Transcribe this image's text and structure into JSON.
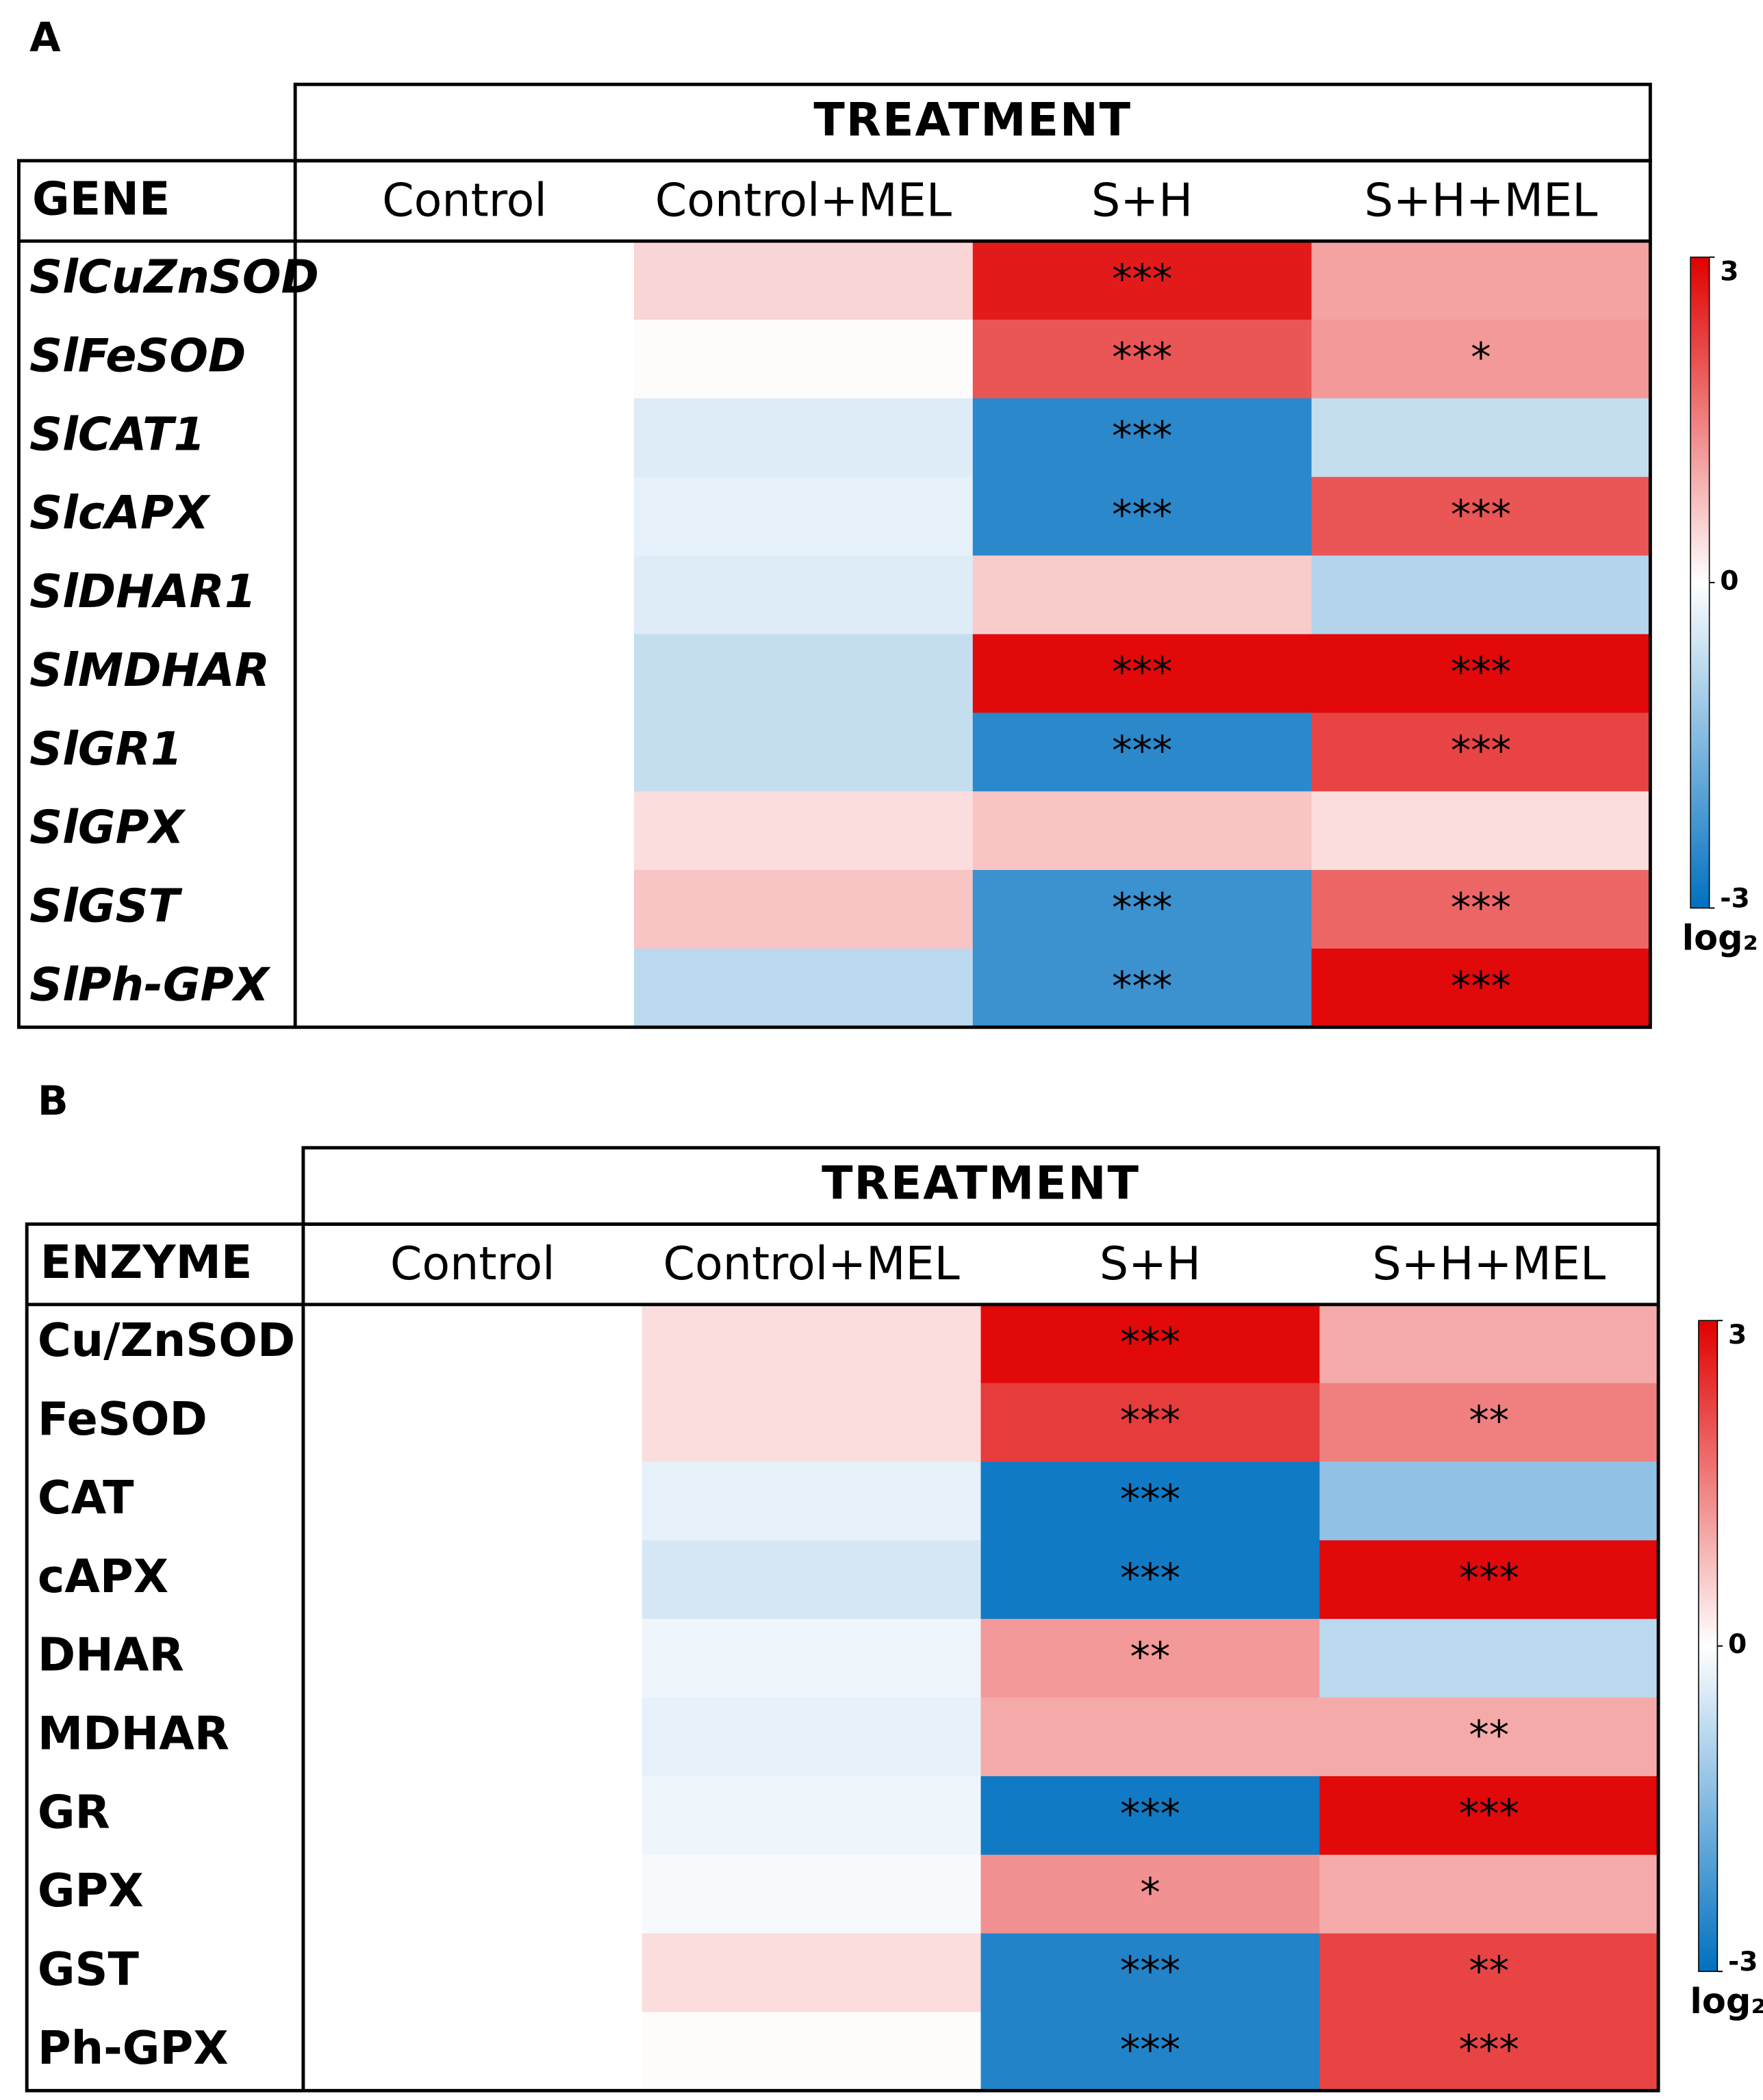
{
  "chart_data": [
    {
      "type": "heatmap",
      "panel_label": "A",
      "header": "TREATMENT",
      "corner_label": "GENE",
      "row_label_style": "italic",
      "columns": [
        "Control",
        "Control+MEL",
        "S+H",
        "S+H+MEL"
      ],
      "rows": [
        "SlCuZnSOD",
        "SlFeSOD",
        "SlCAT1",
        "SlcAPX",
        "SlDHAR1",
        "SlMDHAR",
        "SlGR1",
        "SlGPX",
        "SlGST",
        "SlPh-GPX"
      ],
      "values": [
        [
          0,
          0.5,
          2.7,
          1.1
        ],
        [
          0,
          0.05,
          2.0,
          1.2
        ],
        [
          0,
          -0.4,
          -2.5,
          -0.7
        ],
        [
          0,
          -0.3,
          -2.5,
          2.0
        ],
        [
          0,
          -0.4,
          0.6,
          -0.9
        ],
        [
          0,
          -0.7,
          2.9,
          2.9
        ],
        [
          0,
          -0.7,
          -2.5,
          2.2
        ],
        [
          0,
          0.4,
          0.7,
          0.4
        ],
        [
          0,
          0.7,
          -2.3,
          1.8
        ],
        [
          0,
          -0.8,
          -2.3,
          2.9
        ]
      ],
      "annotations": [
        [
          null,
          null,
          "***",
          null
        ],
        [
          null,
          null,
          "***",
          "*"
        ],
        [
          null,
          null,
          "***",
          null
        ],
        [
          null,
          null,
          "***",
          "***"
        ],
        [
          null,
          null,
          null,
          null
        ],
        [
          null,
          null,
          "***",
          "***"
        ],
        [
          null,
          null,
          "***",
          "***"
        ],
        [
          null,
          null,
          null,
          null
        ],
        [
          null,
          null,
          "***",
          "***"
        ],
        [
          null,
          null,
          "***",
          "***"
        ]
      ],
      "zlim": [
        -3,
        3
      ],
      "zticks": [
        -3,
        0,
        3
      ],
      "colorbar_label": "log₂",
      "colors": {
        "low": "#0070c0",
        "mid": "#ffffff",
        "high": "#e00000"
      }
    },
    {
      "type": "heatmap",
      "panel_label": "B",
      "header": "TREATMENT",
      "corner_label": "ENZYME",
      "row_label_style": "normal",
      "columns": [
        "Control",
        "Control+MEL",
        "S+H",
        "S+H+MEL"
      ],
      "rows": [
        "Cu/ZnSOD",
        "FeSOD",
        "CAT",
        "cAPX",
        "DHAR",
        "MDHAR",
        "GR",
        "GPX",
        "GST",
        "Ph-GPX"
      ],
      "values": [
        [
          0,
          0.4,
          2.9,
          1.0
        ],
        [
          0,
          0.4,
          2.3,
          1.5
        ],
        [
          0,
          -0.3,
          -2.8,
          -1.3
        ],
        [
          0,
          -0.5,
          -2.8,
          2.9
        ],
        [
          0,
          -0.2,
          1.2,
          -0.8
        ],
        [
          0,
          -0.3,
          1.0,
          1.0
        ],
        [
          0,
          -0.2,
          -2.8,
          2.9
        ],
        [
          0,
          -0.1,
          1.3,
          1.0
        ],
        [
          0,
          0.4,
          -2.6,
          2.2
        ],
        [
          0,
          0.05,
          -2.6,
          2.2
        ]
      ],
      "annotations": [
        [
          null,
          null,
          "***",
          null
        ],
        [
          null,
          null,
          "***",
          "**"
        ],
        [
          null,
          null,
          "***",
          null
        ],
        [
          null,
          null,
          "***",
          "***"
        ],
        [
          null,
          null,
          "**",
          null
        ],
        [
          null,
          null,
          null,
          "**"
        ],
        [
          null,
          null,
          "***",
          "***"
        ],
        [
          null,
          null,
          "*",
          null
        ],
        [
          null,
          null,
          "***",
          "**"
        ],
        [
          null,
          null,
          "***",
          "***"
        ]
      ],
      "zlim": [
        -3,
        3
      ],
      "zticks": [
        -3,
        0,
        3
      ],
      "colorbar_label": "log₂",
      "colors": {
        "low": "#0070c0",
        "mid": "#ffffff",
        "high": "#e00000"
      }
    }
  ]
}
